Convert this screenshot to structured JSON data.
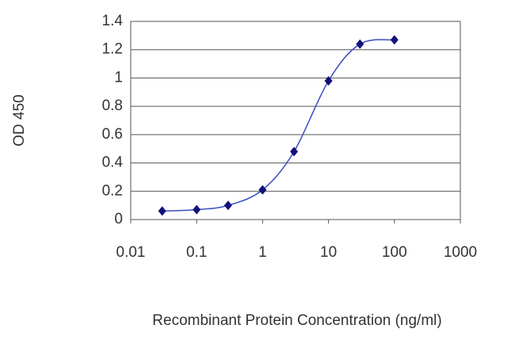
{
  "chart_data": {
    "type": "line",
    "x_label": "Recombinant Protein Concentration (ng/ml)",
    "y_label": "OD 450",
    "x_scale": "log",
    "grid": true,
    "x": [
      0.03,
      0.1,
      0.3,
      1,
      3,
      10,
      30,
      100
    ],
    "series": [
      {
        "name": "OD 450",
        "color": "#3b4cc0",
        "marker_color": "#10107a",
        "values": [
          0.06,
          0.07,
          0.1,
          0.21,
          0.48,
          0.98,
          1.24,
          1.27
        ]
      }
    ],
    "xlim": [
      0.01,
      1000
    ],
    "xticks": [
      0.01,
      0.1,
      1,
      10,
      100,
      1000
    ],
    "ylim": [
      0,
      1.4
    ],
    "yticks": [
      0,
      0.2,
      0.4,
      0.6,
      0.8,
      1,
      1.2,
      1.4
    ]
  }
}
